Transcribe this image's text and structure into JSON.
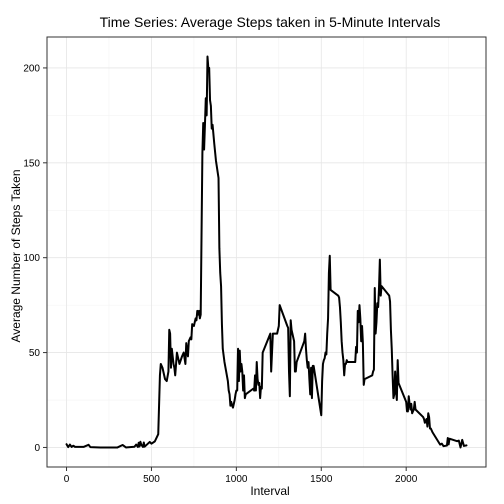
{
  "chart_data": {
    "type": "line",
    "title": "Time Series: Average Steps taken in 5-Minute Intervals",
    "xlabel": "Interval",
    "ylabel": "Average Number of Steps Taken",
    "xlim": [
      -115,
      2470
    ],
    "ylim": [
      -10.3,
      216.3
    ],
    "xticks": [
      0,
      500,
      1000,
      1500,
      2000
    ],
    "yticks": [
      0,
      50,
      100,
      150,
      200
    ],
    "grid": true,
    "colors": {
      "line": "#000000",
      "grid_major": "#e6e6e6",
      "grid_minor": "#f2f2f2",
      "border": "#333333"
    },
    "series": [
      {
        "values": [
          [
            0,
            1.7
          ],
          [
            10,
            0.2
          ],
          [
            20,
            1.5
          ],
          [
            30,
            0.3
          ],
          [
            40,
            0.9
          ],
          [
            50,
            0.3
          ],
          [
            100,
            0.3
          ],
          [
            130,
            1.4
          ],
          [
            140,
            0.2
          ],
          [
            200,
            0.0
          ],
          [
            300,
            0.0
          ],
          [
            330,
            1.3
          ],
          [
            350,
            0.0
          ],
          [
            400,
            0.4
          ],
          [
            410,
            1.5
          ],
          [
            420,
            0.3
          ],
          [
            425,
            2.5
          ],
          [
            430,
            0.5
          ],
          [
            435,
            3.0
          ],
          [
            440,
            1.5
          ],
          [
            450,
            0.3
          ],
          [
            455,
            2.6
          ],
          [
            460,
            0.4
          ],
          [
            490,
            2.9
          ],
          [
            500,
            2.0
          ],
          [
            520,
            3.2
          ],
          [
            540,
            7.0
          ],
          [
            550,
            38.0
          ],
          [
            555,
            44.0
          ],
          [
            565,
            42.0
          ],
          [
            580,
            36.0
          ],
          [
            590,
            35.0
          ],
          [
            600,
            40.0
          ],
          [
            605,
            62.0
          ],
          [
            610,
            60.0
          ],
          [
            615,
            42.0
          ],
          [
            620,
            52.0
          ],
          [
            630,
            44.0
          ],
          [
            635,
            42.0
          ],
          [
            640,
            38.0
          ],
          [
            650,
            50.0
          ],
          [
            660,
            46.0
          ],
          [
            665,
            44.0
          ],
          [
            680,
            48.0
          ],
          [
            690,
            50.0
          ],
          [
            700,
            44.0
          ],
          [
            705,
            55.0
          ],
          [
            710,
            51.0
          ],
          [
            715,
            48.0
          ],
          [
            720,
            56.0
          ],
          [
            730,
            58.0
          ],
          [
            735,
            57.0
          ],
          [
            740,
            65.0
          ],
          [
            750,
            64.0
          ],
          [
            760,
            68.0
          ],
          [
            765,
            67.0
          ],
          [
            770,
            72.0
          ],
          [
            775,
            70.0
          ],
          [
            780,
            72.0
          ],
          [
            785,
            68.0
          ],
          [
            790,
            70.0
          ],
          [
            800,
            155.0
          ],
          [
            805,
            171.0
          ],
          [
            810,
            157.0
          ],
          [
            815,
            170.0
          ],
          [
            820,
            184.0
          ],
          [
            825,
            175.0
          ],
          [
            830,
            206.0
          ],
          [
            835,
            200.0
          ],
          [
            840,
            200.0
          ],
          [
            845,
            183.0
          ],
          [
            850,
            180.0
          ],
          [
            855,
            168.0
          ],
          [
            860,
            170.0
          ],
          [
            865,
            165.0
          ],
          [
            870,
            160.0
          ],
          [
            880,
            151.0
          ],
          [
            890,
            145.0
          ],
          [
            895,
            142.0
          ],
          [
            900,
            105.0
          ],
          [
            905,
            92.0
          ],
          [
            910,
            85.0
          ],
          [
            915,
            65.0
          ],
          [
            920,
            52.0
          ],
          [
            930,
            45.0
          ],
          [
            940,
            40.0
          ],
          [
            950,
            35.0
          ],
          [
            955,
            30.0
          ],
          [
            960,
            28.0
          ],
          [
            965,
            22.0
          ],
          [
            970,
            24.0
          ],
          [
            975,
            22.0
          ],
          [
            980,
            21.0
          ],
          [
            990,
            25.0
          ],
          [
            995,
            28.0
          ],
          [
            1000,
            30.0
          ],
          [
            1005,
            30.0
          ],
          [
            1010,
            52.0
          ],
          [
            1015,
            35.0
          ],
          [
            1020,
            51.0
          ],
          [
            1025,
            40.0
          ],
          [
            1030,
            44.0
          ],
          [
            1035,
            40.0
          ],
          [
            1040,
            30.0
          ],
          [
            1045,
            38.0
          ],
          [
            1050,
            26.0
          ],
          [
            1055,
            28.0
          ],
          [
            1100,
            31.0
          ],
          [
            1105,
            30.0
          ],
          [
            1110,
            38.0
          ],
          [
            1115,
            30.0
          ],
          [
            1120,
            45.0
          ],
          [
            1125,
            36.0
          ],
          [
            1130,
            33.0
          ],
          [
            1135,
            34.0
          ],
          [
            1140,
            26.0
          ],
          [
            1145,
            32.0
          ],
          [
            1150,
            31.0
          ],
          [
            1155,
            50.0
          ],
          [
            1200,
            60.0
          ],
          [
            1205,
            40.0
          ],
          [
            1210,
            50.0
          ],
          [
            1215,
            60.0
          ],
          [
            1240,
            60.0
          ],
          [
            1250,
            64.0
          ],
          [
            1255,
            75.0
          ],
          [
            1300,
            64.0
          ],
          [
            1305,
            63.0
          ],
          [
            1310,
            40.0
          ],
          [
            1315,
            27.0
          ],
          [
            1320,
            67.0
          ],
          [
            1325,
            62.0
          ],
          [
            1330,
            60.0
          ],
          [
            1340,
            56.0
          ],
          [
            1345,
            40.0
          ],
          [
            1350,
            40.0
          ],
          [
            1355,
            45.0
          ],
          [
            1400,
            56.0
          ],
          [
            1405,
            60.0
          ],
          [
            1410,
            52.0
          ],
          [
            1415,
            46.0
          ],
          [
            1420,
            42.0
          ],
          [
            1425,
            45.0
          ],
          [
            1430,
            36.0
          ],
          [
            1435,
            28.0
          ],
          [
            1440,
            42.0
          ],
          [
            1445,
            26.0
          ],
          [
            1450,
            43.0
          ],
          [
            1455,
            43.0
          ],
          [
            1500,
            17.0
          ],
          [
            1505,
            35.0
          ],
          [
            1510,
            44.0
          ],
          [
            1515,
            46.0
          ],
          [
            1520,
            47.0
          ],
          [
            1525,
            50.0
          ],
          [
            1530,
            49.0
          ],
          [
            1535,
            60.0
          ],
          [
            1540,
            68.0
          ],
          [
            1545,
            92.0
          ],
          [
            1550,
            101.0
          ],
          [
            1555,
            83.0
          ],
          [
            1600,
            80.0
          ],
          [
            1605,
            79.0
          ],
          [
            1610,
            74.0
          ],
          [
            1615,
            66.0
          ],
          [
            1620,
            56.0
          ],
          [
            1625,
            50.0
          ],
          [
            1630,
            46.0
          ],
          [
            1635,
            38.0
          ],
          [
            1640,
            44.0
          ],
          [
            1645,
            44.0
          ],
          [
            1650,
            46.0
          ],
          [
            1655,
            45.0
          ],
          [
            1700,
            45.0
          ],
          [
            1705,
            53.0
          ],
          [
            1710,
            50.0
          ],
          [
            1715,
            72.0
          ],
          [
            1720,
            66.0
          ],
          [
            1725,
            75.0
          ],
          [
            1730,
            68.0
          ],
          [
            1735,
            56.0
          ],
          [
            1740,
            64.0
          ],
          [
            1745,
            55.0
          ],
          [
            1750,
            33.0
          ],
          [
            1755,
            36.0
          ],
          [
            1800,
            38.0
          ],
          [
            1805,
            40.0
          ],
          [
            1810,
            41.0
          ],
          [
            1815,
            84.0
          ],
          [
            1820,
            60.0
          ],
          [
            1825,
            66.0
          ],
          [
            1830,
            76.0
          ],
          [
            1835,
            74.0
          ],
          [
            1840,
            84.0
          ],
          [
            1845,
            99.0
          ],
          [
            1850,
            80.0
          ],
          [
            1855,
            85.0
          ],
          [
            1900,
            80.0
          ],
          [
            1905,
            77.0
          ],
          [
            1910,
            62.0
          ],
          [
            1915,
            52.0
          ],
          [
            1920,
            38.0
          ],
          [
            1925,
            26.0
          ],
          [
            1930,
            28.0
          ],
          [
            1935,
            40.0
          ],
          [
            1940,
            30.0
          ],
          [
            1945,
            25.0
          ],
          [
            1950,
            46.0
          ],
          [
            1955,
            34.0
          ],
          [
            2000,
            24.0
          ],
          [
            2005,
            19.0
          ],
          [
            2010,
            19.0
          ],
          [
            2015,
            27.0
          ],
          [
            2020,
            23.0
          ],
          [
            2025,
            20.0
          ],
          [
            2030,
            23.0
          ],
          [
            2035,
            18.0
          ],
          [
            2040,
            19.0
          ],
          [
            2045,
            20.0
          ],
          [
            2050,
            24.0
          ],
          [
            2055,
            20.0
          ],
          [
            2100,
            16.0
          ],
          [
            2105,
            15.0
          ],
          [
            2110,
            13.0
          ],
          [
            2115,
            14.0
          ],
          [
            2120,
            15.0
          ],
          [
            2125,
            11.0
          ],
          [
            2130,
            18.0
          ],
          [
            2135,
            16.0
          ],
          [
            2140,
            10.0
          ],
          [
            2145,
            10.0
          ],
          [
            2150,
            9.0
          ],
          [
            2155,
            8.0
          ],
          [
            2200,
            1.5
          ],
          [
            2210,
            2.0
          ],
          [
            2220,
            0.7
          ],
          [
            2240,
            1.0
          ],
          [
            2245,
            5.0
          ],
          [
            2250,
            1.6
          ],
          [
            2255,
            4.6
          ],
          [
            2300,
            3.3
          ],
          [
            2310,
            3.6
          ],
          [
            2320,
            0.0
          ],
          [
            2330,
            4.0
          ],
          [
            2340,
            0.8
          ],
          [
            2350,
            1.0
          ],
          [
            2355,
            1.1
          ]
        ]
      }
    ]
  }
}
